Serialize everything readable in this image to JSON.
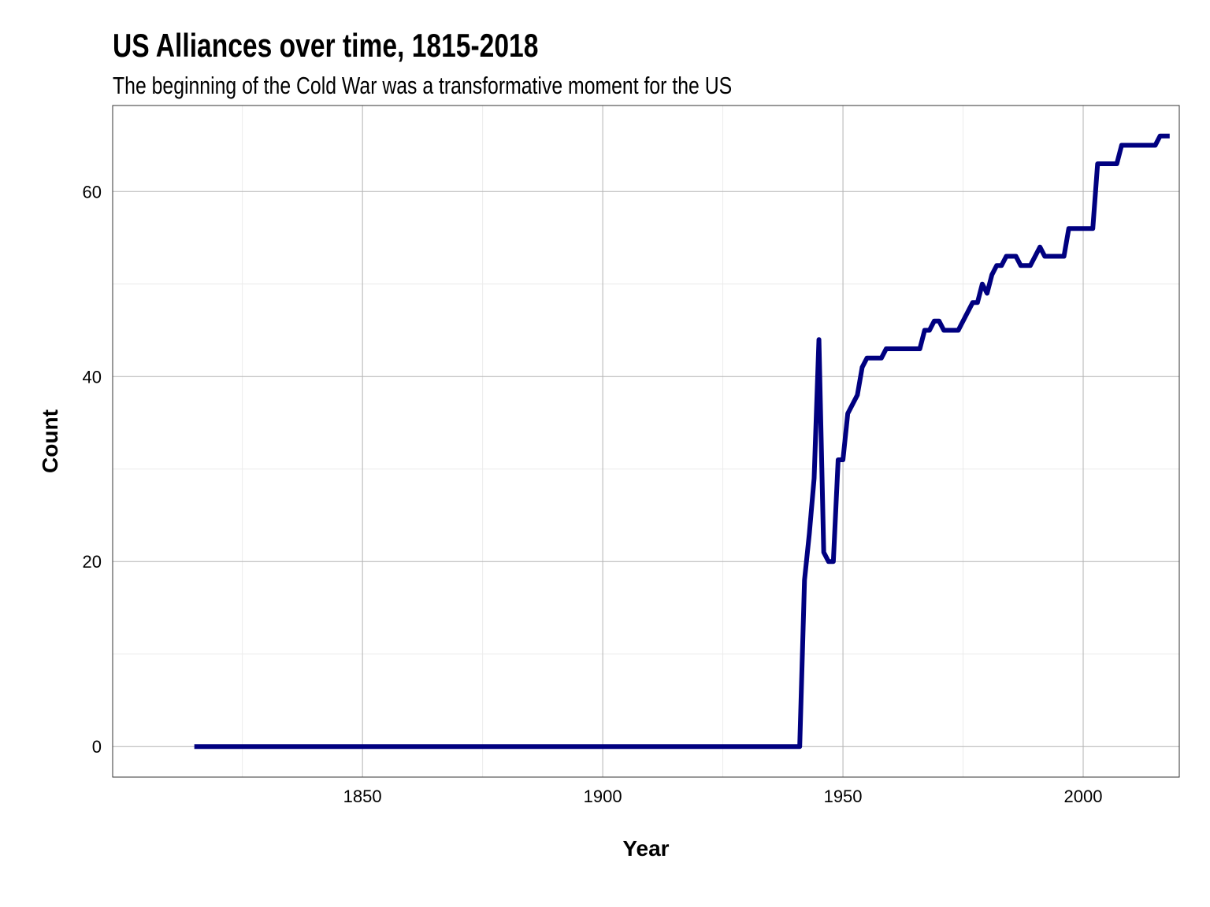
{
  "chart_data": {
    "type": "line",
    "title": "US Alliances over time, 1815-2018",
    "subtitle": "The beginning of the Cold War was a transformative moment for the US",
    "xlabel": "Year",
    "ylabel": "Count",
    "xlim": [
      1798,
      2020
    ],
    "ylim": [
      -3.3,
      69.3
    ],
    "x_ticks": [
      1850,
      1900,
      1950,
      2000
    ],
    "x_tick_labels": [
      "1850",
      "1900",
      "1950",
      "2000"
    ],
    "y_ticks": [
      0,
      20,
      40,
      60
    ],
    "y_tick_labels": [
      "0",
      "20",
      "40",
      "60"
    ],
    "grid": true,
    "line_color": "#000080",
    "series": [
      {
        "points": [
          [
            1815,
            0
          ],
          [
            1941,
            0
          ],
          [
            1942,
            18
          ],
          [
            1943,
            23
          ],
          [
            1944,
            29
          ],
          [
            1945,
            44
          ],
          [
            1946,
            21
          ],
          [
            1947,
            20
          ],
          [
            1948,
            20
          ],
          [
            1949,
            31
          ],
          [
            1950,
            31
          ],
          [
            1951,
            36
          ],
          [
            1952,
            37
          ],
          [
            1953,
            38
          ],
          [
            1954,
            41
          ],
          [
            1955,
            42
          ],
          [
            1958,
            42
          ],
          [
            1959,
            43
          ],
          [
            1966,
            43
          ],
          [
            1967,
            45
          ],
          [
            1968,
            45
          ],
          [
            1969,
            46
          ],
          [
            1970,
            46
          ],
          [
            1971,
            45
          ],
          [
            1974,
            45
          ],
          [
            1977,
            48
          ],
          [
            1978,
            48
          ],
          [
            1979,
            50
          ],
          [
            1980,
            49
          ],
          [
            1981,
            51
          ],
          [
            1982,
            52
          ],
          [
            1983,
            52
          ],
          [
            1984,
            53
          ],
          [
            1986,
            53
          ],
          [
            1987,
            52
          ],
          [
            1989,
            52
          ],
          [
            1991,
            54
          ],
          [
            1992,
            53
          ],
          [
            1996,
            53
          ],
          [
            1997,
            56
          ],
          [
            2002,
            56
          ],
          [
            2003,
            63
          ],
          [
            2007,
            63
          ],
          [
            2008,
            65
          ],
          [
            2015,
            65
          ],
          [
            2016,
            66
          ],
          [
            2018,
            66
          ]
        ]
      }
    ]
  }
}
